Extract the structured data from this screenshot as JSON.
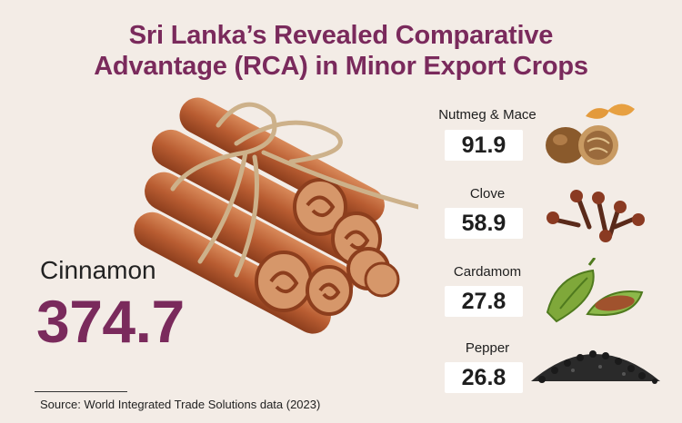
{
  "title": {
    "line1": "Sri Lanka’s Revealed Comparative",
    "line2": "Advantage (RCA) in Minor Export Crops"
  },
  "chart_data": {
    "type": "table",
    "title": "Sri Lanka’s Revealed Comparative Advantage (RCA) in Minor Export Crops",
    "metric": "RCA",
    "categories": [
      "Cinnamon",
      "Nutmeg & Mace",
      "Clove",
      "Cardamom",
      "Pepper"
    ],
    "values": [
      374.7,
      91.9,
      58.9,
      27.8,
      26.8
    ],
    "highlight": {
      "label": "Cinnamon",
      "value": "374.7"
    },
    "items": [
      {
        "label": "Nutmeg & Mace",
        "value": "91.9",
        "icon": "nutmeg-icon"
      },
      {
        "label": "Clove",
        "value": "58.9",
        "icon": "clove-icon"
      },
      {
        "label": "Cardamom",
        "value": "27.8",
        "icon": "cardamom-icon"
      },
      {
        "label": "Pepper",
        "value": "26.8",
        "icon": "pepper-icon"
      }
    ]
  },
  "source": "Source: World Integrated Trade Solutions data (2023)",
  "colors": {
    "accent": "#7a2a5c",
    "background": "#f3ece6",
    "cinnamon": "#c06a3e"
  }
}
